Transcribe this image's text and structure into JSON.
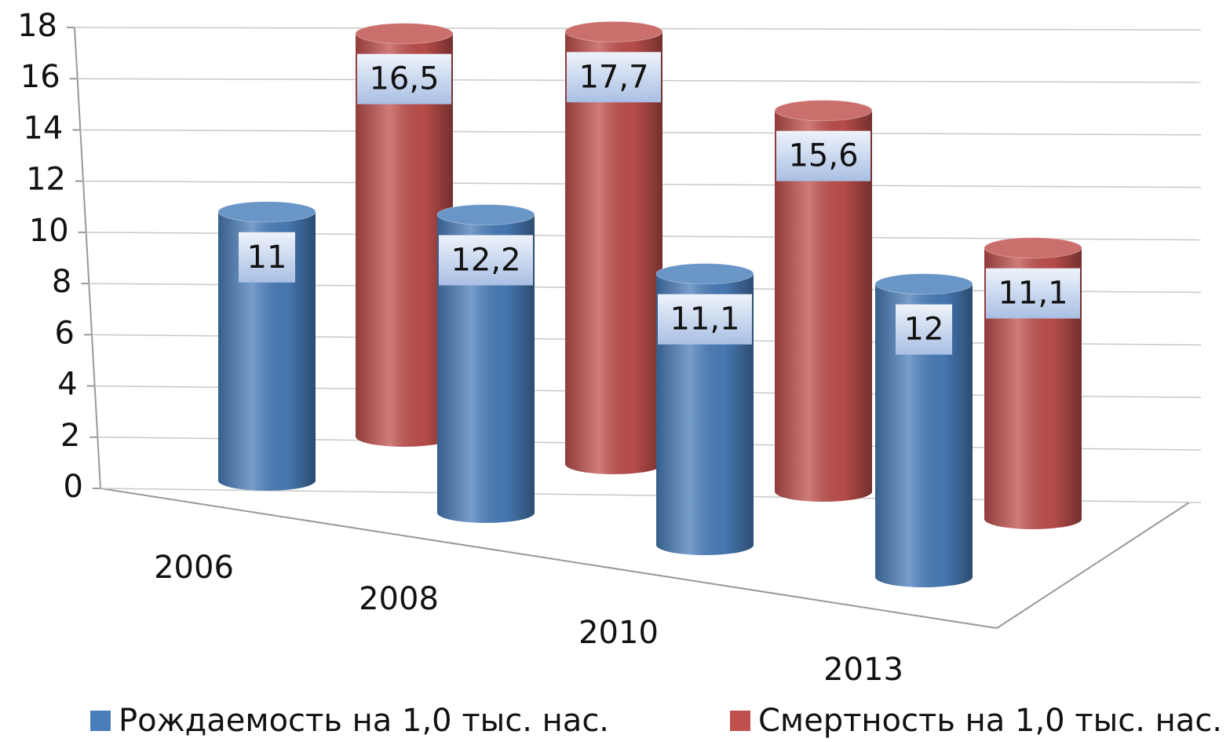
{
  "chart_data": {
    "type": "bar3d",
    "categories": [
      "2006",
      "2008",
      "2010",
      "2013"
    ],
    "series": [
      {
        "name": "Рождаемость на 1,0 тыс. нас.",
        "color": "#4a7ebb",
        "values": [
          11,
          12.2,
          11.1,
          12
        ],
        "value_labels": [
          "11",
          "12,2",
          "11,1",
          "12"
        ]
      },
      {
        "name": "Смертность на 1,0 тыс. нас.",
        "color": "#c0504d",
        "values": [
          16.5,
          17.7,
          15.6,
          11.1
        ],
        "value_labels": [
          "16,5",
          "17,7",
          "15,6",
          "11,1"
        ]
      }
    ],
    "ylim": [
      0,
      18
    ],
    "yticks": [
      0,
      2,
      4,
      6,
      8,
      10,
      12,
      14,
      16,
      18
    ],
    "grid": true,
    "legend": "bottom"
  }
}
